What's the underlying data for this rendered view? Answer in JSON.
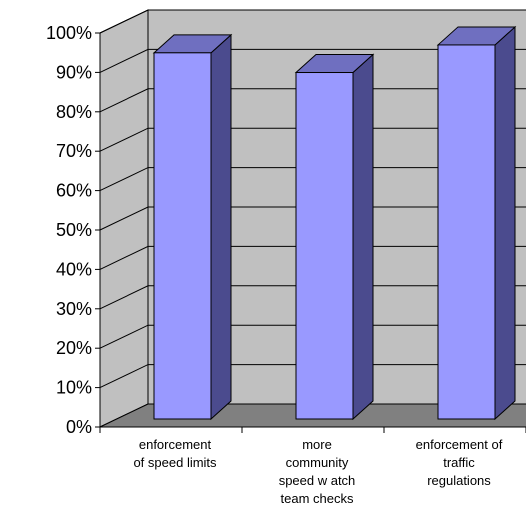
{
  "chart_data": {
    "type": "bar",
    "categories": [
      [
        "enforcement",
        "of speed limits"
      ],
      [
        "more",
        "community",
        "speed w atch",
        "team checks"
      ],
      [
        "enforcement of",
        "traffic",
        "regulations"
      ]
    ],
    "values": [
      97,
      92,
      99
    ],
    "yticks": [
      "0%",
      "10%",
      "20%",
      "30%",
      "40%",
      "50%",
      "60%",
      "70%",
      "80%",
      "90%",
      "100%"
    ],
    "ylim": [
      0,
      100
    ],
    "grid": true,
    "colors": {
      "bar_front": "#9999ff",
      "bar_side": "#4b4b8e",
      "bar_top": "#6f6fc0",
      "wall": "#c0c0c0",
      "floor": "#808080",
      "gridline": "#000000"
    }
  }
}
